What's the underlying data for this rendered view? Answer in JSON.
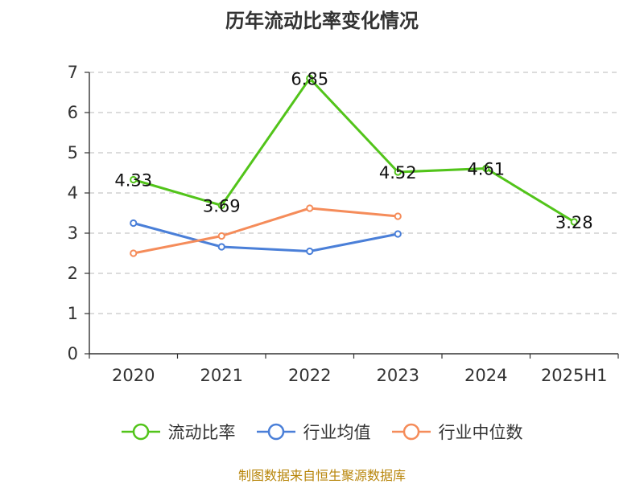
{
  "title": "历年流动比率变化情况",
  "source": "制图数据来自恒生聚源数据库",
  "chart_data": {
    "type": "line",
    "categories": [
      "2020",
      "2021",
      "2022",
      "2023",
      "2024",
      "2025H1"
    ],
    "ylim": [
      0,
      7
    ],
    "yticks": [
      "0",
      "1",
      "2",
      "3",
      "4",
      "5",
      "6",
      "7"
    ],
    "grid": true,
    "legend_position": "bottom",
    "series": [
      {
        "name": "流动比率",
        "color": "#52c41a",
        "values": [
          4.33,
          3.69,
          6.85,
          4.52,
          4.61,
          3.28
        ],
        "labels": [
          "4.33",
          "3.69",
          "6.85",
          "4.52",
          "4.61",
          "3.28"
        ]
      },
      {
        "name": "行业均值",
        "color": "#4a7fd8",
        "values": [
          3.25,
          2.66,
          2.55,
          2.98,
          null,
          null
        ]
      },
      {
        "name": "行业中位数",
        "color": "#f58c5a",
        "values": [
          2.5,
          2.93,
          3.62,
          3.42,
          null,
          null
        ]
      }
    ]
  }
}
